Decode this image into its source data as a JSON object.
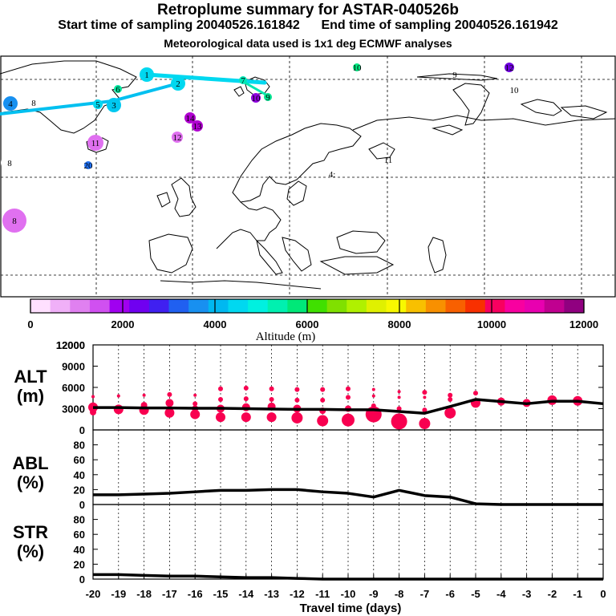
{
  "header": {
    "title": "Retroplume summary for ASTAR-040526b",
    "start_time": "Start time of sampling 20040526.161842",
    "end_time": "End time of sampling 20040526.161942",
    "met_data": "Meteorological data used is 1x1 deg ECMWF analyses"
  },
  "map": {
    "markers": [
      {
        "label": "1",
        "color": "#00d8f0"
      },
      {
        "label": "2",
        "color": "#00d8f0"
      },
      {
        "label": "3",
        "color": "#00c8f0"
      },
      {
        "label": "4",
        "color": "#1890f0"
      },
      {
        "label": "5",
        "color": "#00d8f0"
      },
      {
        "label": "6",
        "color": "#00e8a0"
      },
      {
        "label": "7",
        "color": "#00e8b8"
      },
      {
        "label": "8",
        "color": "#e070f0"
      },
      {
        "label": "9",
        "color": "#00e090"
      },
      {
        "label": "10",
        "color": "#9000e0"
      },
      {
        "label": "11",
        "color": "#e070f0"
      },
      {
        "label": "12",
        "color": "#e070f0"
      },
      {
        "label": "13",
        "color": "#b000d0"
      },
      {
        "label": "14",
        "color": "#b000d0"
      },
      {
        "label": "20",
        "color": "#2070f0"
      },
      {
        "label": "10",
        "color": "#00e880"
      },
      {
        "label": "12",
        "color": "#7000e0"
      },
      {
        "label": "8",
        "color": "#ffffff"
      },
      {
        "label": "9",
        "color": "#ffffff"
      },
      {
        "label": "10",
        "color": "#ffffff"
      },
      {
        "label": "11",
        "color": "#ffffff"
      },
      {
        "label": "4:",
        "color": "#1890f0"
      },
      {
        "label": "8",
        "color": "#ffffff"
      }
    ]
  },
  "colorbar": {
    "colors": [
      "#ffe0ff",
      "#f0b0f8",
      "#e080f0",
      "#d050f0",
      "#a000f0",
      "#7000f0",
      "#4020f0",
      "#2060f0",
      "#1890f0",
      "#00b8f0",
      "#00d8f0",
      "#00f0e0",
      "#00f0b0",
      "#00e878",
      "#40e000",
      "#80e000",
      "#b0f000",
      "#e0f000",
      "#f8f800",
      "#f8c000",
      "#f89000",
      "#f86000",
      "#f83000",
      "#f80060",
      "#f800a0",
      "#e800b0",
      "#c00090",
      "#900080"
    ],
    "tick_labels": [
      "0",
      "2000",
      "4000",
      "6000",
      "8000",
      "10000",
      "12000"
    ],
    "axis_label": "Altitude (m)"
  },
  "chart_data": [
    {
      "type": "line",
      "name": "ALT",
      "ylabel": "ALT (m)",
      "ylim": [
        0,
        12000
      ],
      "yticks": [
        0,
        3000,
        6000,
        9000,
        12000
      ],
      "x": [
        -20,
        -19,
        -18,
        -17,
        -16,
        -15,
        -14,
        -13,
        -12,
        -11,
        -10,
        -9,
        -8,
        -7,
        -6,
        -5,
        -4,
        -3,
        -2,
        -1,
        0
      ],
      "values": [
        3150,
        3150,
        3100,
        3100,
        3050,
        3050,
        3000,
        2950,
        2900,
        2900,
        2850,
        2850,
        2600,
        2350,
        3300,
        4300,
        4000,
        3700,
        4050,
        4050,
        3700
      ],
      "clusters": [
        {
          "x": -20,
          "y": [
            4700,
            3200,
            2500
          ],
          "r": [
            2,
            6,
            4
          ]
        },
        {
          "x": -19,
          "y": [
            4800,
            2900
          ],
          "r": [
            2,
            6
          ]
        },
        {
          "x": -18,
          "y": [
            4900,
            3500,
            2800
          ],
          "r": [
            2,
            4,
            6
          ]
        },
        {
          "x": -17,
          "y": [
            5000,
            3800,
            2400
          ],
          "r": [
            3,
            5,
            6
          ]
        },
        {
          "x": -16,
          "y": [
            4900,
            3700,
            3000,
            2200
          ],
          "r": [
            2,
            3,
            4,
            6
          ]
        },
        {
          "x": -15,
          "y": [
            5800,
            4300,
            3000,
            1800
          ],
          "r": [
            3,
            3,
            5,
            6
          ]
        },
        {
          "x": -14,
          "y": [
            5900,
            4400,
            3200,
            1800
          ],
          "r": [
            3,
            3,
            5,
            6
          ]
        },
        {
          "x": -13,
          "y": [
            5800,
            4300,
            3300,
            1800
          ],
          "r": [
            3,
            3,
            5,
            6
          ]
        },
        {
          "x": -12,
          "y": [
            5700,
            4200,
            3000,
            1700
          ],
          "r": [
            3,
            3,
            5,
            7
          ]
        },
        {
          "x": -11,
          "y": [
            5700,
            4200,
            2700,
            1300
          ],
          "r": [
            3,
            3,
            4,
            7
          ]
        },
        {
          "x": -10,
          "y": [
            5800,
            4600,
            3000,
            1400
          ],
          "r": [
            3,
            3,
            4,
            8
          ]
        },
        {
          "x": -9,
          "y": [
            5700,
            4800,
            3400,
            2200
          ],
          "r": [
            2,
            2,
            3,
            10
          ]
        },
        {
          "x": -8,
          "y": [
            5400,
            4600,
            3000,
            1200
          ],
          "r": [
            2,
            2,
            3,
            10
          ]
        },
        {
          "x": -7,
          "y": [
            5300,
            4600,
            2800,
            900
          ],
          "r": [
            3,
            2,
            3,
            7
          ]
        },
        {
          "x": -6,
          "y": [
            4900,
            4300,
            2400
          ],
          "r": [
            3,
            3,
            7
          ]
        },
        {
          "x": -5,
          "y": [
            5200,
            3800
          ],
          "r": [
            3,
            6
          ]
        },
        {
          "x": -4,
          "y": [
            4000
          ],
          "r": [
            5
          ]
        },
        {
          "x": -3,
          "y": [
            3800
          ],
          "r": [
            5
          ]
        },
        {
          "x": -2,
          "y": [
            4200
          ],
          "r": [
            6
          ]
        },
        {
          "x": -1,
          "y": [
            4100
          ],
          "r": [
            6
          ]
        }
      ]
    },
    {
      "type": "line",
      "name": "ABL",
      "ylabel": "ABL (%)",
      "ylim": [
        0,
        100
      ],
      "yticks": [
        0,
        20,
        40,
        60,
        80
      ],
      "x": [
        -20,
        -19,
        -18,
        -17,
        -16,
        -15,
        -14,
        -13,
        -12,
        -11,
        -10,
        -9,
        -8,
        -7,
        -6,
        -5,
        -4,
        -3,
        -2,
        -1,
        0
      ],
      "values": [
        13,
        13,
        14,
        15,
        17,
        19,
        19,
        20,
        20,
        17,
        15,
        10,
        19,
        12,
        10,
        1,
        0,
        0,
        0,
        0,
        0
      ]
    },
    {
      "type": "line",
      "name": "STR",
      "ylabel": "STR (%)",
      "ylim": [
        0,
        100
      ],
      "yticks": [
        0,
        20,
        40,
        60,
        80
      ],
      "x": [
        -20,
        -19,
        -18,
        -17,
        -16,
        -15,
        -14,
        -13,
        -12,
        -11,
        -10,
        -9,
        -8,
        -7,
        -6,
        -5,
        -4,
        -3,
        -2,
        -1,
        0
      ],
      "values": [
        6,
        6,
        5,
        4,
        4,
        3,
        2,
        2,
        1,
        0,
        0,
        0,
        0,
        0,
        0,
        0,
        0,
        0,
        0,
        0,
        0
      ]
    }
  ],
  "xaxis": {
    "tick_labels": [
      "-20",
      "-19",
      "-18",
      "-17",
      "-16",
      "-15",
      "-14",
      "-13",
      "-12",
      "-11",
      "-10",
      "-9",
      "-8",
      "-7",
      "-6",
      "-5",
      "-4",
      "-3",
      "-2",
      "-1",
      "0"
    ],
    "xlabel": "Travel time (days)"
  },
  "colors": {
    "line": "#000000",
    "cluster": "#f80050"
  }
}
